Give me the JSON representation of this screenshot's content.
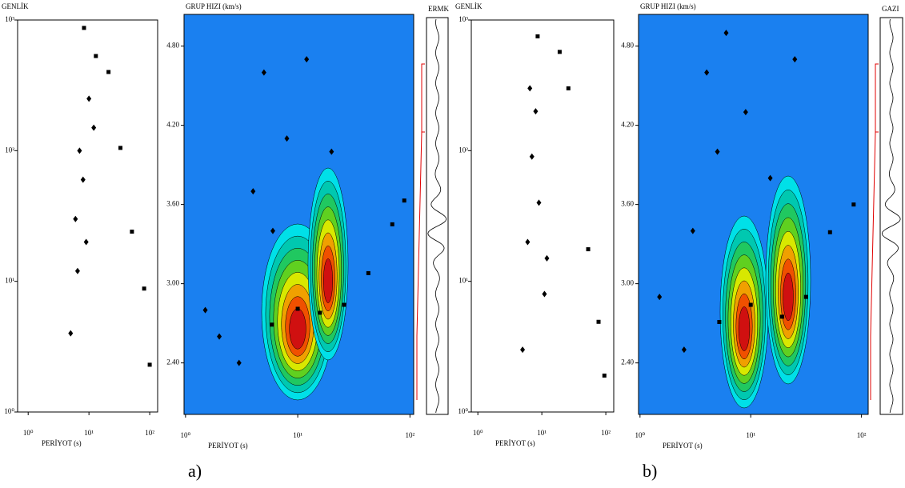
{
  "chart_data": [
    {
      "type": "scatter",
      "y_label": "GENLİK",
      "x_label": "PERİYOT (s)",
      "log_x": true,
      "log_y": true,
      "xlim": [
        0.67,
        135
      ],
      "xticks": [
        {
          "value": 1,
          "label": "10⁰"
        },
        {
          "value": 10,
          "label": "10¹"
        },
        {
          "value": 100,
          "label": "10²"
        }
      ],
      "ylim": [
        1,
        1000
      ],
      "yticks": [
        {
          "value": 1,
          "label": "10⁰"
        },
        {
          "value": 10,
          "label": "10¹"
        },
        {
          "value": 100,
          "label": "10²"
        },
        {
          "value": 1000,
          "label": "10³"
        }
      ],
      "series": [
        {
          "marker": "square",
          "color": "#000000",
          "x": [
            8.3,
            13,
            21,
            33,
            51,
            81,
            100
          ],
          "values": [
            870,
            530,
            400,
            105,
            24,
            8.8,
            2.3
          ]
        },
        {
          "marker": "diamond",
          "color": "#000000",
          "x": [
            5,
            6,
            7,
            8,
            10,
            12,
            6.5,
            9
          ],
          "values": [
            4,
            30,
            100,
            60,
            250,
            150,
            12,
            20
          ]
        }
      ]
    },
    {
      "type": "scatter",
      "y_label": "GRUP HIZI (km/s)",
      "x_label": "PERİYOT (s)",
      "log_x": true,
      "log_y": false,
      "trace_label": "ERMK",
      "caption": "a)",
      "xlim": [
        0.97,
        108
      ],
      "xticks": [
        {
          "value": 1,
          "label": "10⁰"
        },
        {
          "value": 10,
          "label": "10¹"
        },
        {
          "value": 100,
          "label": "10²"
        }
      ],
      "ylim": [
        2.01,
        5.04
      ],
      "yticks": [
        {
          "value": 2.4,
          "label": "2.40"
        },
        {
          "value": 3,
          "label": "3.00"
        },
        {
          "value": 3.6,
          "label": "3.60"
        },
        {
          "value": 4.2,
          "label": "4.20"
        },
        {
          "value": 4.8,
          "label": "4.80"
        }
      ],
      "series": [
        {
          "marker": "square",
          "color": "#000000",
          "x": [
            5.9,
            10,
            15.8,
            25.9,
            42.6,
            69.6,
            89
          ],
          "values": [
            2.69,
            2.81,
            2.78,
            2.84,
            3.08,
            3.45,
            3.63
          ]
        },
        {
          "marker": "diamond",
          "color": "#000000",
          "x": [
            1.5,
            2,
            3,
            4,
            5,
            6,
            8,
            12,
            20
          ],
          "values": [
            2.8,
            2.6,
            2.4,
            3.7,
            4.6,
            3.4,
            4.1,
            4.7,
            4.0
          ]
        }
      ]
    },
    {
      "type": "scatter",
      "y_label": "GENLİK",
      "x_label": "PERİYOT (s)",
      "log_x": true,
      "log_y": true,
      "xlim": [
        0.79,
        133
      ],
      "xticks": [
        {
          "value": 1,
          "label": "10⁰"
        },
        {
          "value": 10,
          "label": "10¹"
        },
        {
          "value": 100,
          "label": "10²"
        }
      ],
      "ylim": [
        1,
        1000
      ],
      "yticks": [
        {
          "value": 1,
          "label": "10⁰"
        },
        {
          "value": 10,
          "label": "10¹"
        },
        {
          "value": 100,
          "label": "10²"
        },
        {
          "value": 1000,
          "label": "10³"
        }
      ],
      "series": [
        {
          "marker": "square",
          "color": "#000000",
          "x": [
            8.6,
            19,
            26,
            53,
            77,
            95
          ],
          "values": [
            750,
            570,
            300,
            17.6,
            4.9,
            1.9
          ]
        },
        {
          "marker": "diamond",
          "color": "#000000",
          "x": [
            5,
            6,
            7,
            8,
            9,
            11,
            6.5,
            12
          ],
          "values": [
            3,
            20,
            90,
            200,
            40,
            8,
            300,
            15
          ]
        }
      ]
    },
    {
      "type": "scatter",
      "y_label": "GRUP HIZI (km/s)",
      "x_label": "PERİYOT (s)",
      "log_x": true,
      "log_y": false,
      "trace_label": "GAZI",
      "caption": "b)",
      "xlim": [
        0.97,
        115
      ],
      "xticks": [
        {
          "value": 1,
          "label": "10⁰"
        },
        {
          "value": 10,
          "label": "10¹"
        },
        {
          "value": 100,
          "label": "10²"
        }
      ],
      "ylim": [
        2.01,
        5.04
      ],
      "yticks": [
        {
          "value": 2.4,
          "label": "2.40"
        },
        {
          "value": 3,
          "label": "3.00"
        },
        {
          "value": 3.6,
          "label": "3.60"
        },
        {
          "value": 4.2,
          "label": "4.20"
        },
        {
          "value": 4.8,
          "label": "4.80"
        }
      ],
      "series": [
        {
          "marker": "square",
          "color": "#000000",
          "x": [
            5.2,
            10,
            19.2,
            31.6,
            52,
            85
          ],
          "values": [
            2.71,
            2.84,
            2.75,
            2.9,
            3.39,
            3.6
          ]
        },
        {
          "marker": "diamond",
          "color": "#000000",
          "x": [
            1.5,
            2.5,
            3,
            4,
            5,
            6,
            9,
            15,
            25
          ],
          "values": [
            2.9,
            2.5,
            3.4,
            4.6,
            4.0,
            4.9,
            4.3,
            3.8,
            4.7
          ]
        }
      ]
    }
  ]
}
